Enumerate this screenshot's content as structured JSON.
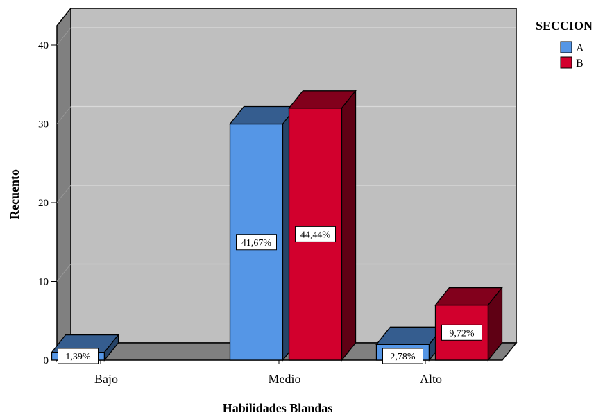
{
  "chart_data": {
    "type": "bar",
    "xlabel": "Habilidades Blandas",
    "ylabel": "Recuento",
    "ylim": [
      0,
      40
    ],
    "yticks": [
      "0",
      "10",
      "20",
      "30",
      "40"
    ],
    "grid": true,
    "legend_placement": "top-right",
    "legend_title": "SECCION",
    "categories": [
      "Bajo",
      "Medio",
      "Alto"
    ],
    "series": [
      {
        "name": "A",
        "color": "#5596E6",
        "values": [
          1,
          30,
          2
        ],
        "labels": [
          "1,39%",
          "41,67%",
          "2,78%"
        ]
      },
      {
        "name": "B",
        "color": "#D2002D",
        "values": [
          0,
          32,
          7
        ],
        "labels": [
          "",
          "44,44%",
          "9,72%"
        ]
      }
    ]
  }
}
